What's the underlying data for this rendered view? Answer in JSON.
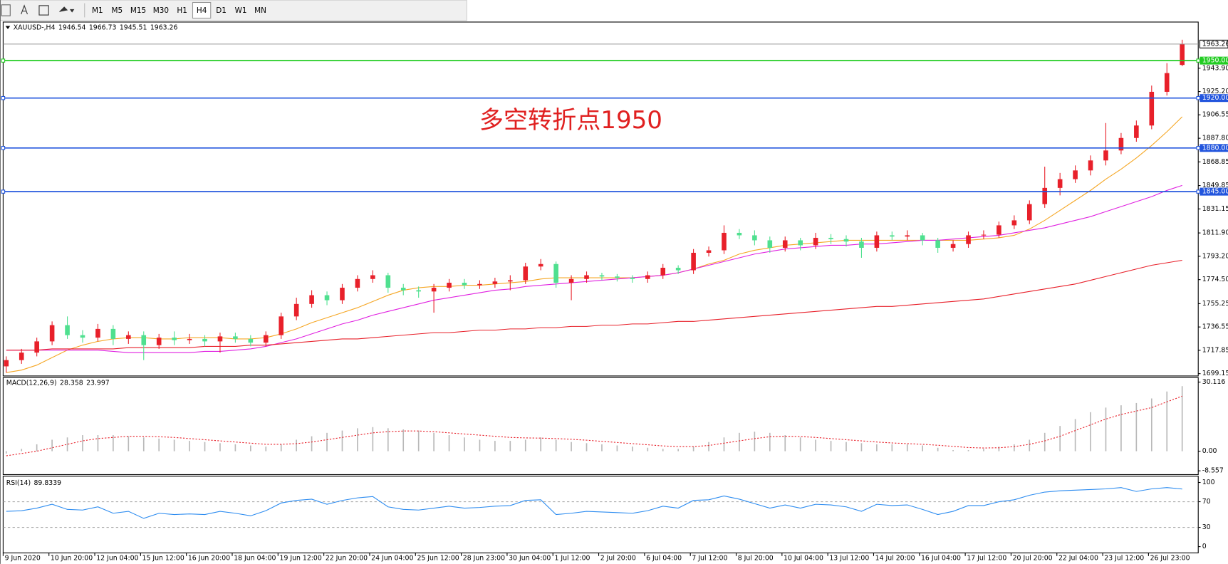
{
  "toolbar": {
    "buttons": [
      "M1",
      "M5",
      "M15",
      "M30",
      "H1",
      "H4",
      "D1",
      "W1",
      "MN"
    ],
    "active": "H4"
  },
  "chart_data": [
    {
      "type": "candlestick",
      "title": "XAUUSD-,H4",
      "annotation": "多空转折点1950",
      "up_color": "#e8202a",
      "down_color": "#4fe08f",
      "categories": [
        "9 Jun 2020",
        null,
        null,
        "10 Jun 20:00",
        null,
        null,
        "12 Jun 04:00",
        null,
        null,
        "15 Jun 12:00",
        null,
        null,
        "16 Jun 20:00",
        null,
        null,
        "18 Jun 04:00",
        null,
        null,
        "19 Jun 12:00",
        null,
        null,
        "22 Jun 20:00",
        null,
        null,
        "24 Jun 04:00",
        null,
        null,
        "25 Jun 12:00",
        null,
        null,
        "28 Jun 23:00",
        null,
        null,
        "30 Jun 04:00",
        null,
        null,
        "1 Jul 12:00",
        null,
        null,
        "2 Jul 20:00",
        null,
        null,
        "6 Jul 04:00",
        null,
        null,
        "7 Jul 12:00",
        null,
        null,
        "8 Jul 20:00",
        null,
        null,
        "10 Jul 04:00",
        null,
        null,
        "13 Jul 12:00",
        null,
        null,
        "14 Jul 20:00",
        null,
        null,
        "16 Jul 04:00",
        null,
        null,
        "17 Jul 12:00",
        null,
        null,
        "20 Jul 20:00",
        null,
        null,
        "22 Jul 04:00",
        null,
        null,
        "23 Jul 12:00",
        null,
        null,
        "26 Jul 23:00",
        null,
        null
      ],
      "open": [
        1705,
        1710,
        1716,
        1725,
        1738,
        1730,
        1728,
        1735,
        1727,
        1730,
        1722,
        1728,
        1726,
        1727,
        1725,
        1729,
        1727,
        1724,
        1730,
        1745,
        1755,
        1762,
        1758,
        1768,
        1775,
        1778,
        1768,
        1766,
        1765,
        1768,
        1772,
        1770,
        1771,
        1773,
        1774,
        1785,
        1787,
        1772,
        1775,
        1778,
        1777,
        1776,
        1775,
        1778,
        1784,
        1782,
        1796,
        1798,
        1812,
        1810,
        1806,
        1800,
        1806,
        1802,
        1808,
        1807,
        1805,
        1800,
        1810,
        1809,
        1810,
        1806,
        1800,
        1803,
        1810,
        1810.5,
        1818,
        1822,
        1835,
        1848,
        1855,
        1862,
        1870,
        1878,
        1888,
        1898,
        1925,
        1946.54
      ],
      "high": [
        1713,
        1719,
        1728,
        1741,
        1745,
        1734,
        1739,
        1738,
        1733,
        1733,
        1731,
        1733,
        1731,
        1730,
        1732,
        1732,
        1730,
        1733,
        1748,
        1760,
        1766,
        1765,
        1771,
        1778,
        1782,
        1780,
        1771,
        1769,
        1771,
        1775,
        1775,
        1774,
        1776,
        1778,
        1788,
        1791,
        1789,
        1778,
        1781,
        1780,
        1779,
        1778,
        1781,
        1787,
        1786,
        1799,
        1801,
        1818,
        1815,
        1814,
        1809,
        1809,
        1808,
        1812,
        1811,
        1810,
        1808,
        1813,
        1813,
        1814,
        1812,
        1808,
        1806,
        1813,
        1814,
        1821,
        1826,
        1838,
        1865,
        1860,
        1866,
        1874,
        1900,
        1892,
        1902,
        1930,
        1948,
        1966.73
      ],
      "low": [
        1700,
        1707,
        1713,
        1722,
        1727,
        1724,
        1725,
        1722,
        1723,
        1710,
        1719,
        1722,
        1723,
        1721,
        1716,
        1724,
        1721,
        1721,
        1727,
        1742,
        1752,
        1754,
        1755,
        1765,
        1772,
        1764,
        1762,
        1760,
        1748,
        1765,
        1767,
        1767,
        1768,
        1766,
        1771,
        1782,
        1768,
        1758,
        1772,
        1774,
        1773,
        1772,
        1772,
        1775,
        1779,
        1779,
        1793,
        1795,
        1807,
        1802,
        1796,
        1797,
        1798,
        1799,
        1803,
        1801,
        1792,
        1797,
        1806,
        1806,
        1802,
        1796,
        1797,
        1800,
        1807,
        1808,
        1815,
        1819,
        1832,
        1842,
        1852,
        1858,
        1866,
        1875,
        1885,
        1895,
        1922,
        1945.51
      ],
      "close": [
        1710,
        1716,
        1725,
        1738,
        1730,
        1728,
        1735,
        1727,
        1730,
        1722,
        1728,
        1726,
        1727,
        1725,
        1729,
        1727,
        1724,
        1730,
        1745,
        1755,
        1762,
        1758,
        1768,
        1775,
        1778,
        1768,
        1766,
        1765,
        1768,
        1772,
        1770,
        1771,
        1773,
        1774,
        1785,
        1787,
        1772,
        1775,
        1778,
        1777,
        1776,
        1775,
        1778,
        1784,
        1782,
        1796,
        1798,
        1812,
        1810,
        1806,
        1800,
        1806,
        1802,
        1808,
        1807,
        1805,
        1800,
        1810,
        1809,
        1810,
        1806,
        1800,
        1803,
        1810,
        1810.5,
        1818,
        1822,
        1835,
        1848,
        1855,
        1862,
        1870,
        1878,
        1888,
        1898,
        1925,
        1940,
        1963.26
      ],
      "series": [
        {
          "color": "#f5a623",
          "values": [
            1700,
            1702,
            1706,
            1712,
            1718,
            1722,
            1725,
            1727,
            1728,
            1728,
            1727,
            1727,
            1728,
            1728,
            1728,
            1727,
            1727,
            1728,
            1731,
            1735,
            1740,
            1744,
            1748,
            1752,
            1757,
            1762,
            1766,
            1768,
            1769,
            1769,
            1770,
            1770,
            1771,
            1772,
            1773,
            1775,
            1776,
            1776,
            1776,
            1776,
            1776,
            1776,
            1777,
            1778,
            1780,
            1783,
            1787,
            1790,
            1795,
            1798,
            1800,
            1802,
            1803,
            1804,
            1805,
            1806,
            1806,
            1806,
            1806,
            1806,
            1806,
            1806,
            1806,
            1806,
            1807,
            1808,
            1810,
            1815,
            1822,
            1830,
            1838,
            1846,
            1855,
            1863,
            1872,
            1882,
            1893,
            1905
          ]
        },
        {
          "color": "#e020e0",
          "values": [
            1718,
            1718,
            1718,
            1718,
            1718,
            1718,
            1718,
            1717,
            1716,
            1716,
            1716,
            1716,
            1716,
            1717,
            1717,
            1718,
            1719,
            1721,
            1724,
            1727,
            1731,
            1735,
            1739,
            1742,
            1746,
            1749,
            1752,
            1755,
            1758,
            1760,
            1762,
            1764,
            1766,
            1767,
            1769,
            1770,
            1771,
            1772,
            1773,
            1774,
            1775,
            1776,
            1777,
            1778,
            1780,
            1783,
            1786,
            1789,
            1792,
            1795,
            1797,
            1799,
            1800,
            1801,
            1802,
            1802,
            1803,
            1803,
            1804,
            1805,
            1806,
            1806,
            1807,
            1808,
            1809,
            1810,
            1812,
            1814,
            1816,
            1819,
            1822,
            1825,
            1829,
            1833,
            1837,
            1841,
            1846,
            1850
          ]
        },
        {
          "color": "#e8202a",
          "values": [
            1718,
            1718,
            1718,
            1719,
            1719,
            1719,
            1719,
            1719,
            1720,
            1720,
            1720,
            1720,
            1720,
            1721,
            1721,
            1721,
            1722,
            1722,
            1723,
            1724,
            1725,
            1726,
            1727,
            1727,
            1728,
            1729,
            1730,
            1731,
            1732,
            1732,
            1733,
            1734,
            1734,
            1735,
            1735,
            1736,
            1736,
            1737,
            1737,
            1738,
            1738,
            1739,
            1739,
            1740,
            1741,
            1741,
            1742,
            1743,
            1744,
            1745,
            1746,
            1747,
            1748,
            1749,
            1750,
            1751,
            1752,
            1753,
            1753,
            1754,
            1755,
            1756,
            1757,
            1758,
            1759,
            1761,
            1763,
            1765,
            1767,
            1769,
            1771,
            1774,
            1777,
            1780,
            1783,
            1786,
            1788,
            1790
          ]
        }
      ],
      "levels": [
        {
          "value": 1950,
          "label": "1950.00",
          "color": "#22cc22"
        },
        {
          "value": 1920,
          "label": "1920.00",
          "color": "#2255dd"
        },
        {
          "value": 1880,
          "label": "1880.00",
          "color": "#2255dd"
        },
        {
          "value": 1845,
          "label": "1845.00",
          "color": "#2255dd"
        }
      ],
      "ylim": [
        1697.3,
        1980.9
      ],
      "yticks": [
        1699.15,
        1717.85,
        1736.55,
        1755.25,
        {
          "value": 1774.5,
          "label": "1774.50"
        },
        {
          "value": 1793.2,
          "label": "1793.20"
        },
        {
          "value": 1811.9,
          "label": "1811.90"
        },
        1831.15,
        1849.85,
        1868.85,
        {
          "value": 1887.8,
          "label": "1887.80"
        },
        1906.55,
        {
          "value": 1925.2,
          "label": "1925.20"
        },
        {
          "value": 1943.9,
          "label": "1943.90"
        }
      ]
    },
    {
      "type": "macd",
      "title": "MACD(12,26,9)",
      "bar_color": "#b8b8b8",
      "signal_color": "#e8202a",
      "values": [
        -1,
        1,
        3,
        5,
        6,
        7,
        7,
        7,
        6.5,
        6,
        5.5,
        5,
        4.5,
        4,
        3.5,
        3,
        2.5,
        2,
        3,
        5,
        6.5,
        8,
        9,
        10,
        10.5,
        10,
        9.5,
        9,
        8,
        7,
        6,
        5,
        4.5,
        4.5,
        5,
        6,
        5,
        4,
        3.5,
        3,
        2.5,
        2,
        1.5,
        1,
        1,
        2,
        4,
        6,
        8,
        8.5,
        8,
        7,
        6,
        5,
        4.5,
        4,
        3.5,
        3,
        3,
        3,
        2.5,
        1.5,
        0.5,
        0.5,
        1,
        2,
        3,
        5,
        8,
        11,
        14,
        17,
        19,
        20,
        21,
        23,
        26,
        28.358
      ],
      "signal": [
        -2,
        -1,
        0,
        1.5,
        3,
        4.5,
        5.5,
        6,
        6.5,
        6.5,
        6.3,
        6,
        5.5,
        5,
        4.5,
        4,
        3.5,
        3,
        3,
        3.3,
        4,
        5,
        6,
        7,
        8,
        8.5,
        8.8,
        8.8,
        8.5,
        8,
        7.5,
        7,
        6.5,
        6,
        5.8,
        5.7,
        5.5,
        5.2,
        4.8,
        4.3,
        3.8,
        3.3,
        2.8,
        2.3,
        2,
        2,
        2.5,
        3.5,
        4.5,
        5.5,
        6.3,
        6.5,
        6.4,
        6,
        5.5,
        5,
        4.5,
        4,
        3.6,
        3.3,
        3,
        2.6,
        2.1,
        1.6,
        1.4,
        1.5,
        2,
        3,
        4.5,
        6.5,
        9,
        11.5,
        14,
        16,
        17.5,
        19,
        21.5,
        23.997
      ],
      "ylim": [
        -10.2,
        32.1
      ],
      "yticks": [
        30.116,
        {
          "value": 0,
          "label": "0.00"
        },
        -8.557
      ]
    },
    {
      "type": "line",
      "title": "RSI(14)",
      "color": "#2d8cf0",
      "values": [
        55,
        56,
        60,
        66,
        58,
        57,
        62,
        52,
        55,
        44,
        52,
        50,
        51,
        50,
        55,
        52,
        48,
        56,
        68,
        72,
        74,
        66,
        72,
        76,
        78,
        62,
        58,
        57,
        60,
        63,
        60,
        61,
        63,
        64,
        72,
        73,
        50,
        52,
        55,
        54,
        53,
        52,
        56,
        63,
        60,
        72,
        73,
        79,
        74,
        67,
        60,
        65,
        60,
        66,
        65,
        62,
        55,
        66,
        64,
        65,
        58,
        50,
        55,
        64,
        64,
        70,
        73,
        80,
        85,
        87,
        88,
        89,
        90,
        92,
        86,
        90,
        92,
        89.8339
      ],
      "dashed_levels": [
        70,
        30
      ],
      "ylim": [
        -9.8,
        109.8
      ],
      "yticks": [
        100,
        70,
        30,
        0
      ]
    }
  ]
}
